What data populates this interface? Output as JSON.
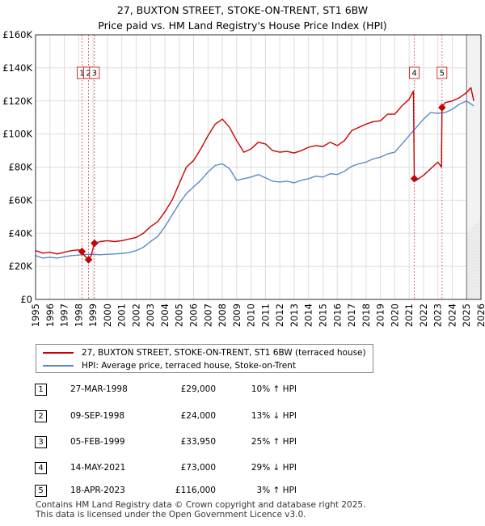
{
  "title_line1": "27, BUXTON STREET, STOKE-ON-TRENT, ST1 6BW",
  "title_line2": "Price paid vs. HM Land Registry's House Price Index (HPI)",
  "chart_data": {
    "type": "line",
    "title": "27, BUXTON STREET, STOKE-ON-TRENT, ST1 6BW — Price paid vs. HM Land Registry's House Price Index (HPI)",
    "xlabel": "",
    "ylabel": "",
    "xlim": [
      1995,
      2026
    ],
    "ylim": [
      0,
      160000
    ],
    "grid": true,
    "y_ticks": [
      0,
      20000,
      40000,
      60000,
      80000,
      100000,
      120000,
      140000,
      160000
    ],
    "y_tick_labels": [
      "£0",
      "£20K",
      "£40K",
      "£60K",
      "£80K",
      "£100K",
      "£120K",
      "£140K",
      "£160K"
    ],
    "x_ticks": [
      1995,
      1996,
      1997,
      1998,
      1999,
      2000,
      2001,
      2002,
      2003,
      2004,
      2005,
      2006,
      2007,
      2008,
      2009,
      2010,
      2011,
      2012,
      2013,
      2014,
      2015,
      2016,
      2017,
      2018,
      2019,
      2020,
      2021,
      2022,
      2023,
      2024,
      2025,
      2026
    ],
    "x_tick_labels": [
      "1995",
      "1996",
      "1997",
      "1998",
      "1999",
      "2000",
      "2001",
      "2002",
      "2003",
      "2004",
      "2005",
      "2006",
      "2007",
      "2008",
      "2009",
      "2010",
      "2011",
      "2012",
      "2013",
      "2014",
      "2015",
      "2016",
      "2017",
      "2018",
      "2019",
      "2020",
      "2021",
      "2022",
      "2023",
      "2024",
      "2025",
      "2026"
    ],
    "shaded_forecast_start": 2025.0,
    "series": [
      {
        "name": "27, BUXTON STREET, STOKE-ON-TRENT, ST1 6BW (terraced house)",
        "color": "#cc0000",
        "points": [
          [
            1995.0,
            29500
          ],
          [
            1995.5,
            28000
          ],
          [
            1996.0,
            28500
          ],
          [
            1996.5,
            27500
          ],
          [
            1997.0,
            28500
          ],
          [
            1997.5,
            29500
          ],
          [
            1998.0,
            30000
          ],
          [
            1998.23,
            29000
          ],
          [
            1998.4,
            26500
          ],
          [
            1998.69,
            24000
          ],
          [
            1998.85,
            26000
          ],
          [
            1999.1,
            33950
          ],
          [
            1999.5,
            35000
          ],
          [
            2000.0,
            35500
          ],
          [
            2000.5,
            35000
          ],
          [
            2001.0,
            35500
          ],
          [
            2001.5,
            36500
          ],
          [
            2002.0,
            37500
          ],
          [
            2002.5,
            40000
          ],
          [
            2003.0,
            44000
          ],
          [
            2003.5,
            47000
          ],
          [
            2004.0,
            53000
          ],
          [
            2004.5,
            60000
          ],
          [
            2005.0,
            70000
          ],
          [
            2005.5,
            80000
          ],
          [
            2006.0,
            84000
          ],
          [
            2006.5,
            91000
          ],
          [
            2007.0,
            99000
          ],
          [
            2007.5,
            106000
          ],
          [
            2008.0,
            109000
          ],
          [
            2008.5,
            104000
          ],
          [
            2009.0,
            96000
          ],
          [
            2009.5,
            89000
          ],
          [
            2010.0,
            91000
          ],
          [
            2010.5,
            95000
          ],
          [
            2011.0,
            94000
          ],
          [
            2011.5,
            90000
          ],
          [
            2012.0,
            89000
          ],
          [
            2012.5,
            89500
          ],
          [
            2013.0,
            88500
          ],
          [
            2013.5,
            90000
          ],
          [
            2014.0,
            92000
          ],
          [
            2014.5,
            93000
          ],
          [
            2015.0,
            92500
          ],
          [
            2015.5,
            95000
          ],
          [
            2016.0,
            93000
          ],
          [
            2016.5,
            96000
          ],
          [
            2017.0,
            102000
          ],
          [
            2017.5,
            104000
          ],
          [
            2018.0,
            106000
          ],
          [
            2018.5,
            107500
          ],
          [
            2019.0,
            108000
          ],
          [
            2019.5,
            112000
          ],
          [
            2020.0,
            112000
          ],
          [
            2020.5,
            117000
          ],
          [
            2021.0,
            121000
          ],
          [
            2021.3,
            126000
          ],
          [
            2021.36,
            73000
          ],
          [
            2021.5,
            72000
          ],
          [
            2022.0,
            75000
          ],
          [
            2022.5,
            79000
          ],
          [
            2023.0,
            83000
          ],
          [
            2023.25,
            80000
          ],
          [
            2023.29,
            116000
          ],
          [
            2023.5,
            119000
          ],
          [
            2024.0,
            120000
          ],
          [
            2024.5,
            122000
          ],
          [
            2025.0,
            125000
          ],
          [
            2025.3,
            128000
          ],
          [
            2025.5,
            120000
          ]
        ]
      },
      {
        "name": "HPI: Average price, terraced house, Stoke-on-Trent",
        "color": "#5b8ac7",
        "points": [
          [
            1995.0,
            26500
          ],
          [
            1995.5,
            25000
          ],
          [
            1996.0,
            25500
          ],
          [
            1996.5,
            25000
          ],
          [
            1997.0,
            25800
          ],
          [
            1997.5,
            26500
          ],
          [
            1998.0,
            26800
          ],
          [
            1998.5,
            27200
          ],
          [
            1999.0,
            27300
          ],
          [
            1999.5,
            27000
          ],
          [
            2000.0,
            27300
          ],
          [
            2000.5,
            27500
          ],
          [
            2001.0,
            27800
          ],
          [
            2001.5,
            28300
          ],
          [
            2002.0,
            29500
          ],
          [
            2002.5,
            31500
          ],
          [
            2003.0,
            35000
          ],
          [
            2003.5,
            38000
          ],
          [
            2004.0,
            44000
          ],
          [
            2004.5,
            51000
          ],
          [
            2005.0,
            58000
          ],
          [
            2005.5,
            64000
          ],
          [
            2006.0,
            68000
          ],
          [
            2006.5,
            72000
          ],
          [
            2007.0,
            77000
          ],
          [
            2007.5,
            81000
          ],
          [
            2008.0,
            82000
          ],
          [
            2008.5,
            79000
          ],
          [
            2009.0,
            72000
          ],
          [
            2009.5,
            73000
          ],
          [
            2010.0,
            74000
          ],
          [
            2010.5,
            75500
          ],
          [
            2011.0,
            73500
          ],
          [
            2011.5,
            71500
          ],
          [
            2012.0,
            71000
          ],
          [
            2012.5,
            71500
          ],
          [
            2013.0,
            70500
          ],
          [
            2013.5,
            72000
          ],
          [
            2014.0,
            73000
          ],
          [
            2014.5,
            74500
          ],
          [
            2015.0,
            74000
          ],
          [
            2015.5,
            76000
          ],
          [
            2016.0,
            75500
          ],
          [
            2016.5,
            77500
          ],
          [
            2017.0,
            80500
          ],
          [
            2017.5,
            82000
          ],
          [
            2018.0,
            83000
          ],
          [
            2018.5,
            85000
          ],
          [
            2019.0,
            86000
          ],
          [
            2019.5,
            88000
          ],
          [
            2020.0,
            89000
          ],
          [
            2020.5,
            94000
          ],
          [
            2021.0,
            99000
          ],
          [
            2021.5,
            104000
          ],
          [
            2022.0,
            109000
          ],
          [
            2022.5,
            113000
          ],
          [
            2023.0,
            112500
          ],
          [
            2023.5,
            113000
          ],
          [
            2024.0,
            115000
          ],
          [
            2024.5,
            118000
          ],
          [
            2025.0,
            120000
          ],
          [
            2025.5,
            117000
          ]
        ]
      }
    ],
    "sales": [
      {
        "id": "1",
        "x": 1998.23,
        "value": 29000
      },
      {
        "id": "2",
        "x": 1998.69,
        "value": 24000
      },
      {
        "id": "3",
        "x": 1999.1,
        "value": 33950
      },
      {
        "id": "4",
        "x": 2021.36,
        "value": 73000
      },
      {
        "id": "5",
        "x": 2023.29,
        "value": 116000
      }
    ],
    "marker_labels": [
      {
        "text": "1",
        "x": 1998.23
      },
      {
        "text": "2",
        "x": 1998.69
      },
      {
        "text": "3",
        "x": 1999.1
      },
      {
        "text": "4",
        "x": 2021.36
      },
      {
        "text": "5",
        "x": 2023.29
      }
    ]
  },
  "legend": {
    "items": [
      {
        "label": "27, BUXTON STREET, STOKE-ON-TRENT, ST1 6BW (terraced house)",
        "color": "#cc0000"
      },
      {
        "label": "HPI: Average price, terraced house, Stoke-on-Trent",
        "color": "#5b8ac7"
      }
    ]
  },
  "sales_table": [
    {
      "num": "1",
      "date": "27-MAR-1998",
      "price": "£29,000",
      "hpi": "10% ↑ HPI"
    },
    {
      "num": "2",
      "date": "09-SEP-1998",
      "price": "£24,000",
      "hpi": "13% ↓ HPI"
    },
    {
      "num": "3",
      "date": "05-FEB-1999",
      "price": "£33,950",
      "hpi": "25% ↑ HPI"
    },
    {
      "num": "4",
      "date": "14-MAY-2021",
      "price": "£73,000",
      "hpi": "29% ↓ HPI"
    },
    {
      "num": "5",
      "date": "18-APR-2023",
      "price": "£116,000",
      "hpi": "3% ↑ HPI"
    }
  ],
  "footer": {
    "line1": "Contains HM Land Registry data © Crown copyright and database right 2025.",
    "line2": "This data is licensed under the Open Government Licence v3.0."
  }
}
